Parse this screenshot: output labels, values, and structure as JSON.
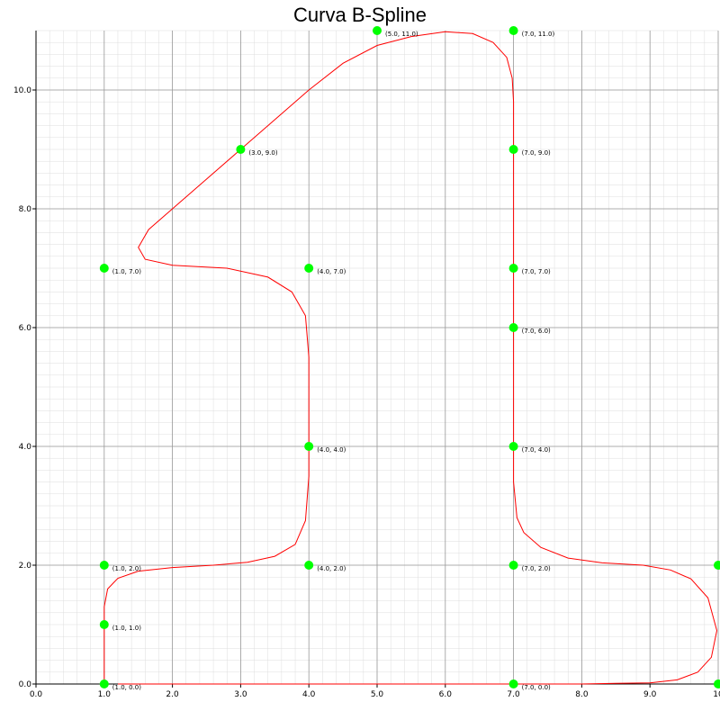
{
  "chart_data": {
    "type": "line",
    "title": "Curva B-Spline",
    "xlabel": "",
    "ylabel": "",
    "xlim": [
      0,
      10
    ],
    "ylim": [
      0,
      11
    ],
    "grid": true,
    "colors": {
      "curve": "#ff0000",
      "points": "#00ff00",
      "major_grid": "#999999",
      "minor_grid": "#dddddd"
    },
    "x_ticks": [
      "0.0",
      "1.0",
      "2.0",
      "3.0",
      "4.0",
      "5.0",
      "6.0",
      "7.0",
      "8.0",
      "9.0",
      "10"
    ],
    "y_ticks": [
      "0.0",
      "2.0",
      "4.0",
      "6.0",
      "8.0",
      "10.0"
    ],
    "control_points": [
      {
        "x": 1,
        "y": 0,
        "label": "(1.0, 0.0)"
      },
      {
        "x": 1,
        "y": 1,
        "label": "(1.0, 1.0)"
      },
      {
        "x": 1,
        "y": 2,
        "label": "(1.0, 2.0)"
      },
      {
        "x": 4,
        "y": 2,
        "label": "(4.0, 2.0)"
      },
      {
        "x": 4,
        "y": 4,
        "label": "(4.0, 4.0)"
      },
      {
        "x": 4,
        "y": 7,
        "label": "(4.0, 7.0)"
      },
      {
        "x": 1,
        "y": 7,
        "label": "(1.0, 7.0)"
      },
      {
        "x": 3,
        "y": 9,
        "label": "(3.0, 9.0)"
      },
      {
        "x": 5,
        "y": 11,
        "label": "(5.0, 11.0)"
      },
      {
        "x": 7,
        "y": 11,
        "label": "(7.0, 11.0)"
      },
      {
        "x": 7,
        "y": 9,
        "label": "(7.0, 9.0)"
      },
      {
        "x": 7,
        "y": 7,
        "label": "(7.0, 7.0)"
      },
      {
        "x": 7,
        "y": 6,
        "label": "(7.0, 6.0)"
      },
      {
        "x": 7,
        "y": 4,
        "label": "(7.0, 4.0)"
      },
      {
        "x": 7,
        "y": 2,
        "label": "(7.0, 2.0)"
      },
      {
        "x": 10,
        "y": 2,
        "label": ""
      },
      {
        "x": 10,
        "y": 0,
        "label": ""
      },
      {
        "x": 7,
        "y": 0,
        "label": "(7.0, 0.0)"
      }
    ],
    "curve": [
      [
        1.0,
        0.0
      ],
      [
        1.0,
        0.6
      ],
      [
        1.0,
        1.3
      ],
      [
        1.05,
        1.6
      ],
      [
        1.2,
        1.78
      ],
      [
        1.5,
        1.9
      ],
      [
        2.0,
        1.96
      ],
      [
        2.6,
        2.0
      ],
      [
        3.1,
        2.05
      ],
      [
        3.5,
        2.15
      ],
      [
        3.8,
        2.35
      ],
      [
        3.95,
        2.75
      ],
      [
        4.0,
        3.5
      ],
      [
        4.0,
        4.5
      ],
      [
        4.0,
        5.5
      ],
      [
        3.95,
        6.2
      ],
      [
        3.75,
        6.6
      ],
      [
        3.4,
        6.85
      ],
      [
        2.8,
        7.0
      ],
      [
        2.0,
        7.05
      ],
      [
        1.6,
        7.15
      ],
      [
        1.5,
        7.35
      ],
      [
        1.65,
        7.65
      ],
      [
        2.0,
        8.0
      ],
      [
        2.5,
        8.5
      ],
      [
        3.0,
        9.0
      ],
      [
        3.5,
        9.5
      ],
      [
        4.0,
        10.0
      ],
      [
        4.5,
        10.45
      ],
      [
        5.0,
        10.75
      ],
      [
        5.5,
        10.9
      ],
      [
        6.0,
        10.98
      ],
      [
        6.4,
        10.95
      ],
      [
        6.7,
        10.8
      ],
      [
        6.9,
        10.55
      ],
      [
        6.98,
        10.2
      ],
      [
        7.0,
        9.8
      ],
      [
        7.0,
        9.0
      ],
      [
        7.0,
        8.0
      ],
      [
        7.0,
        7.0
      ],
      [
        7.0,
        6.0
      ],
      [
        7.0,
        5.0
      ],
      [
        7.0,
        4.0
      ],
      [
        7.0,
        3.4
      ],
      [
        7.05,
        2.8
      ],
      [
        7.15,
        2.55
      ],
      [
        7.4,
        2.3
      ],
      [
        7.8,
        2.12
      ],
      [
        8.3,
        2.04
      ],
      [
        8.9,
        2.0
      ],
      [
        9.3,
        1.92
      ],
      [
        9.6,
        1.77
      ],
      [
        9.85,
        1.45
      ],
      [
        9.98,
        0.9
      ],
      [
        9.9,
        0.45
      ],
      [
        9.7,
        0.2
      ],
      [
        9.4,
        0.07
      ],
      [
        9.0,
        0.02
      ],
      [
        8.5,
        0.01
      ],
      [
        8.0,
        0.0
      ],
      [
        7.5,
        0.0
      ],
      [
        7.0,
        0.0
      ],
      [
        6.0,
        0.0
      ],
      [
        5.0,
        0.0
      ],
      [
        4.0,
        0.0
      ],
      [
        3.0,
        0.0
      ],
      [
        2.0,
        0.0
      ],
      [
        1.2,
        0.0
      ]
    ]
  }
}
